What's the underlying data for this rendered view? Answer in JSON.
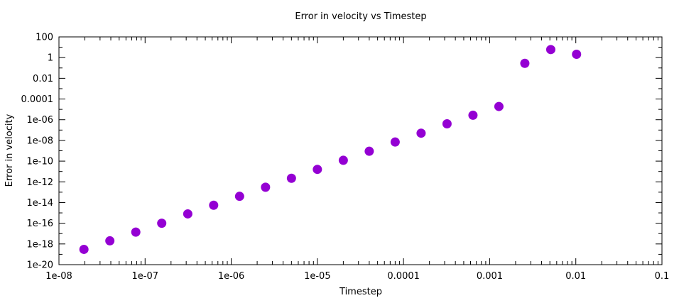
{
  "chart_data": {
    "type": "scatter",
    "title": "Error in velocity vs Timestep",
    "xlabel": "Timestep",
    "ylabel": "Error in velocity",
    "x_scale": "log",
    "y_scale": "log",
    "xlim": [
      1e-08,
      0.1
    ],
    "ylim": [
      1e-20,
      100
    ],
    "x_ticks": [
      "1e-08",
      "1e-07",
      "1e-06",
      "1e-05",
      "0.0001",
      "0.001",
      "0.01",
      "0.1"
    ],
    "y_ticks": [
      "1e-20",
      "1e-18",
      "1e-16",
      "1e-14",
      "1e-12",
      "1e-10",
      "1e-08",
      "1e-06",
      "0.0001",
      "0.01",
      "1",
      "100"
    ],
    "grid": false,
    "marker_color": "#9400d3",
    "series": [
      {
        "x": [
          1.95e-08,
          3.9e-08,
          7.8e-08,
          1.56e-07,
          3.13e-07,
          6.25e-07,
          1.25e-06,
          2.5e-06,
          5e-06,
          1e-05,
          2e-05,
          4e-05,
          8e-05,
          0.00016,
          0.00032,
          0.00064,
          0.00128,
          0.00256,
          0.00512,
          0.0102
        ],
        "y": [
          3e-19,
          2e-18,
          1.4e-17,
          1e-16,
          8e-16,
          5.5e-15,
          4e-14,
          3e-13,
          2.2e-12,
          1.6e-11,
          1.2e-10,
          9e-10,
          7e-09,
          5e-08,
          4e-07,
          2.7e-06,
          1.9e-05,
          0.28,
          6,
          2.1
        ]
      }
    ]
  }
}
